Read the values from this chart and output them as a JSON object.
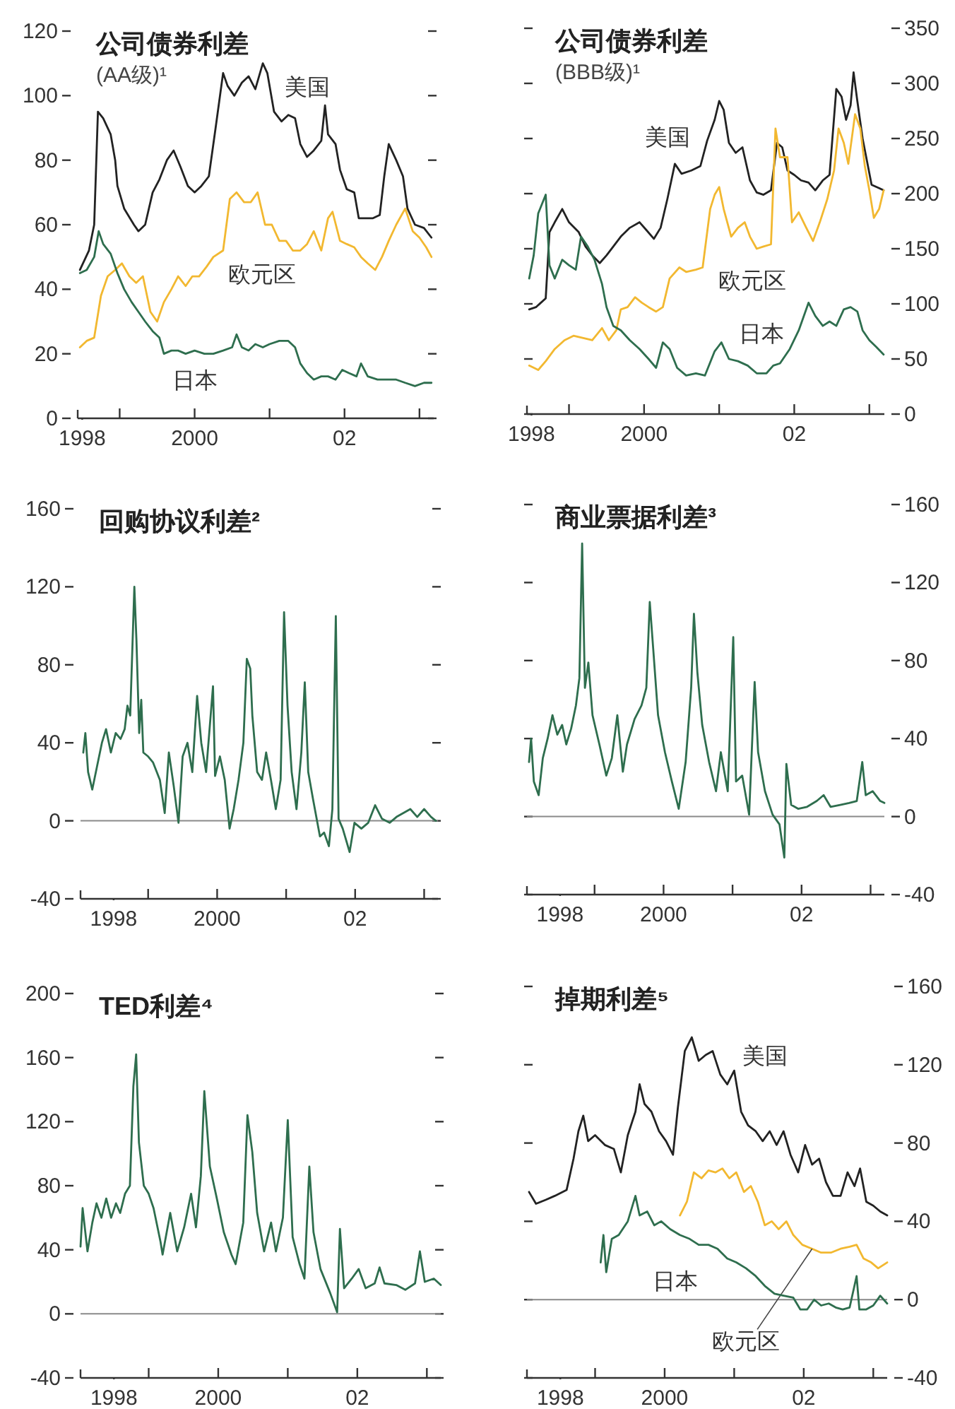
{
  "chart_data": [
    {
      "type": "line",
      "title": "公司债券利差",
      "subtitle": "(AA级)¹",
      "xlim": [
        1998.44,
        2003.19
      ],
      "ylim": [
        0,
        120
      ],
      "yticks": [
        0,
        20,
        40,
        60,
        80,
        100,
        120
      ],
      "xticks": [
        {
          "value": 1998.5,
          "label": "1998"
        },
        {
          "value": 1999,
          "label": null
        },
        {
          "value": 2000,
          "label": "2000"
        },
        {
          "value": 2001,
          "label": null
        },
        {
          "value": 2002,
          "label": "02"
        },
        {
          "value": 2003,
          "label": null
        }
      ],
      "series": [
        {
          "name": "美国",
          "color": "#222222",
          "x": [
            1998.47,
            1998.59,
            1998.66,
            1998.71,
            1998.78,
            1998.88,
            1998.94,
            1998.97,
            1999.06,
            1999.19,
            1999.25,
            1999.34,
            1999.44,
            1999.53,
            1999.63,
            1999.72,
            1999.81,
            1999.91,
            2000.0,
            2000.09,
            2000.19,
            2000.28,
            2000.38,
            2000.44,
            2000.53,
            2000.63,
            2000.72,
            2000.81,
            2000.91,
            2000.97,
            2001.06,
            2001.16,
            2001.25,
            2001.34,
            2001.41,
            2001.5,
            2001.59,
            2001.69,
            2001.74,
            2001.78,
            2001.88,
            2001.94,
            2002.03,
            2002.13,
            2002.19,
            2002.28,
            2002.38,
            2002.47,
            2002.53,
            2002.59,
            2002.69,
            2002.78,
            2002.84,
            2002.94,
            2003.06,
            2003.16
          ],
          "values": [
            46,
            52,
            60,
            95,
            93,
            88,
            80,
            72,
            65,
            60,
            58,
            60,
            70,
            74,
            80,
            83,
            78,
            72,
            70,
            72,
            75,
            90,
            107,
            103,
            100,
            104,
            106,
            102,
            110,
            107,
            95,
            92,
            94,
            93,
            85,
            81,
            83,
            86,
            97,
            88,
            85,
            77,
            71,
            70,
            62,
            62,
            62,
            63,
            75,
            85,
            80,
            75,
            65,
            60,
            59,
            56
          ]
        },
        {
          "name": "欧元区",
          "color": "#f2b830",
          "x": [
            1998.47,
            1998.56,
            1998.66,
            1998.75,
            1998.84,
            1998.94,
            1999.03,
            1999.13,
            1999.22,
            1999.31,
            1999.41,
            1999.5,
            1999.59,
            1999.69,
            1999.78,
            1999.88,
            1999.97,
            2000.06,
            2000.16,
            2000.25,
            2000.38,
            2000.47,
            2000.56,
            2000.66,
            2000.75,
            2000.84,
            2000.94,
            2001.03,
            2001.13,
            2001.22,
            2001.31,
            2001.41,
            2001.5,
            2001.59,
            2001.69,
            2001.78,
            2001.84,
            2001.94,
            2002.03,
            2002.13,
            2002.22,
            2002.31,
            2002.41,
            2002.5,
            2002.59,
            2002.69,
            2002.81,
            2002.91,
            2003.0,
            2003.09,
            2003.16
          ],
          "values": [
            22,
            24,
            25,
            38,
            44,
            46,
            48,
            44,
            42,
            44,
            33,
            30,
            36,
            40,
            44,
            41,
            44,
            44,
            47,
            50,
            52,
            68,
            70,
            67,
            67,
            70,
            60,
            60,
            55,
            55,
            52,
            52,
            54,
            58,
            52,
            62,
            64,
            55,
            54,
            53,
            50,
            48,
            46,
            50,
            55,
            60,
            65,
            58,
            56,
            53,
            50
          ]
        },
        {
          "name": "日本",
          "color": "#2e6e4e",
          "x": [
            1998.47,
            1998.56,
            1998.66,
            1998.72,
            1998.78,
            1998.88,
            1998.97,
            1999.06,
            1999.16,
            1999.25,
            1999.34,
            1999.44,
            1999.53,
            1999.59,
            1999.69,
            1999.78,
            1999.88,
            2000.0,
            2000.13,
            2000.25,
            2000.38,
            2000.5,
            2000.56,
            2000.63,
            2000.72,
            2000.81,
            2000.91,
            2001.0,
            2001.13,
            2001.25,
            2001.34,
            2001.41,
            2001.5,
            2001.59,
            2001.69,
            2001.78,
            2001.88,
            2001.97,
            2002.06,
            2002.16,
            2002.22,
            2002.31,
            2002.44,
            2002.56,
            2002.69,
            2002.81,
            2002.94,
            2003.06,
            2003.16
          ],
          "values": [
            45,
            46,
            50,
            58,
            54,
            51,
            45,
            40,
            36,
            33,
            30,
            27,
            25,
            20,
            21,
            21,
            20,
            21,
            20,
            20,
            21,
            22,
            26,
            22,
            21,
            23,
            22,
            23,
            24,
            24,
            22,
            17,
            14,
            12,
            13,
            13,
            12,
            15,
            14,
            13,
            17,
            13,
            12,
            12,
            12,
            11,
            10,
            11,
            11
          ]
        }
      ]
    },
    {
      "type": "line",
      "title": "公司债券利差",
      "subtitle": "(BBB级)¹",
      "xlim": [
        1998.44,
        2003.2
      ],
      "y2lim": [
        0,
        350
      ],
      "y2ticks": [
        0,
        50,
        100,
        150,
        200,
        250,
        300,
        350
      ],
      "xticks": [
        {
          "value": 1998.5,
          "label": "1998"
        },
        {
          "value": 1999,
          "label": null
        },
        {
          "value": 2000,
          "label": "2000"
        },
        {
          "value": 2001,
          "label": null
        },
        {
          "value": 2002,
          "label": "02"
        },
        {
          "value": 2003,
          "label": null
        }
      ],
      "series": [
        {
          "name": "美国",
          "color": "#222222",
          "axis": "y2",
          "x": [
            1998.47,
            1998.56,
            1998.69,
            1998.74,
            1998.81,
            1998.91,
            1999.0,
            1999.13,
            1999.22,
            1999.31,
            1999.41,
            1999.5,
            1999.59,
            1999.69,
            1999.81,
            1999.94,
            2000.03,
            2000.13,
            2000.22,
            2000.31,
            2000.41,
            2000.5,
            2000.63,
            2000.75,
            2000.84,
            2000.94,
            2001.0,
            2001.06,
            2001.13,
            2001.22,
            2001.31,
            2001.41,
            2001.5,
            2001.59,
            2001.69,
            2001.77,
            2001.84,
            2001.91,
            2002.0,
            2002.09,
            2002.19,
            2002.28,
            2002.38,
            2002.47,
            2002.56,
            2002.63,
            2002.69,
            2002.75,
            2002.79,
            2002.84,
            2002.91,
            2002.97,
            2003.03,
            2003.13,
            2003.19
          ],
          "values": [
            95,
            97,
            105,
            165,
            174,
            186,
            174,
            165,
            152,
            144,
            137,
            144,
            152,
            161,
            169,
            174,
            167,
            159,
            169,
            195,
            227,
            218,
            221,
            225,
            248,
            267,
            284,
            276,
            246,
            237,
            242,
            212,
            201,
            199,
            203,
            246,
            242,
            221,
            217,
            212,
            210,
            203,
            212,
            217,
            295,
            288,
            267,
            280,
            310,
            284,
            250,
            229,
            208,
            205,
            203
          ]
        },
        {
          "name": "欧元区",
          "color": "#f2b830",
          "axis": "y2",
          "x": [
            1998.47,
            1998.59,
            1998.69,
            1998.81,
            1998.94,
            1999.06,
            1999.19,
            1999.31,
            1999.44,
            1999.53,
            1999.63,
            1999.69,
            1999.78,
            1999.88,
            1999.97,
            2000.06,
            2000.16,
            2000.25,
            2000.34,
            2000.47,
            2000.56,
            2000.69,
            2000.78,
            2000.88,
            2000.94,
            2001.0,
            2001.06,
            2001.16,
            2001.25,
            2001.34,
            2001.41,
            2001.5,
            2001.59,
            2001.69,
            2001.75,
            2001.81,
            2001.91,
            2001.97,
            2002.06,
            2002.16,
            2002.25,
            2002.34,
            2002.44,
            2002.53,
            2002.59,
            2002.66,
            2002.72,
            2002.81,
            2002.88,
            2002.94,
            2003.0,
            2003.06,
            2003.13,
            2003.19
          ],
          "values": [
            44,
            40,
            48,
            59,
            67,
            71,
            69,
            67,
            78,
            67,
            76,
            95,
            97,
            106,
            101,
            97,
            93,
            97,
            123,
            133,
            129,
            131,
            133,
            186,
            199,
            206,
            186,
            161,
            169,
            174,
            161,
            150,
            152,
            154,
            259,
            233,
            233,
            174,
            183,
            169,
            157,
            174,
            195,
            221,
            259,
            246,
            227,
            272,
            259,
            225,
            203,
            178,
            186,
            203
          ]
        },
        {
          "name": "日本",
          "color": "#2e6e4e",
          "axis": "y2",
          "x": [
            1998.47,
            1998.53,
            1998.59,
            1998.69,
            1998.74,
            1998.81,
            1998.91,
            1999.0,
            1999.09,
            1999.16,
            1999.25,
            1999.34,
            1999.44,
            1999.5,
            1999.59,
            1999.69,
            1999.81,
            1999.94,
            2000.06,
            2000.16,
            2000.25,
            2000.34,
            2000.44,
            2000.56,
            2000.69,
            2000.81,
            2000.94,
            2001.03,
            2001.13,
            2001.25,
            2001.38,
            2001.5,
            2001.63,
            2001.72,
            2001.81,
            2001.94,
            2002.06,
            2002.19,
            2002.28,
            2002.38,
            2002.47,
            2002.56,
            2002.66,
            2002.75,
            2002.84,
            2002.91,
            2003.0,
            2003.09,
            2003.19
          ],
          "values": [
            123,
            144,
            182,
            199,
            135,
            123,
            140,
            135,
            131,
            161,
            152,
            140,
            118,
            97,
            80,
            76,
            67,
            59,
            50,
            42,
            65,
            59,
            42,
            35,
            37,
            35,
            57,
            65,
            50,
            48,
            44,
            37,
            37,
            44,
            46,
            59,
            76,
            101,
            89,
            80,
            84,
            80,
            95,
            97,
            93,
            76,
            67,
            61,
            54
          ]
        }
      ]
    },
    {
      "type": "line",
      "title": "回购协议利差²",
      "xlim": [
        1998.02,
        2003.2
      ],
      "ylim": [
        -40,
        160
      ],
      "yticks": [
        -40,
        0,
        40,
        80,
        120,
        160
      ],
      "xticks": [
        {
          "value": 1998.5,
          "label": "1998"
        },
        {
          "value": 1999,
          "label": null
        },
        {
          "value": 2000,
          "label": "2000"
        },
        {
          "value": 2001,
          "label": null
        },
        {
          "value": 2002,
          "label": "02"
        },
        {
          "value": 2003,
          "label": null
        }
      ],
      "ref_lines": [
        {
          "axis": "y",
          "value": 0,
          "color": "#8a8a8a"
        }
      ],
      "series": [
        {
          "color": "#2e6e4e",
          "x": [
            1998.06,
            1998.09,
            1998.13,
            1998.19,
            1998.26,
            1998.33,
            1998.39,
            1998.46,
            1998.53,
            1998.6,
            1998.66,
            1998.7,
            1998.74,
            1998.8,
            1998.83,
            1998.87,
            1998.9,
            1998.93,
            1999.0,
            1999.07,
            1999.17,
            1999.24,
            1999.3,
            1999.37,
            1999.44,
            1999.5,
            1999.57,
            1999.64,
            1999.71,
            1999.77,
            1999.84,
            1999.94,
            1999.97,
            2000.04,
            2000.11,
            2000.18,
            2000.24,
            2000.31,
            2000.38,
            2000.43,
            2000.48,
            2000.51,
            2000.58,
            2000.65,
            2000.71,
            2000.78,
            2000.85,
            2000.92,
            2000.97,
            2001.02,
            2001.08,
            2001.15,
            2001.22,
            2001.27,
            2001.32,
            2001.39,
            2001.49,
            2001.55,
            2001.62,
            2001.67,
            2001.72,
            2001.76,
            2001.82,
            2001.92,
            2001.99,
            2002.09,
            2002.19,
            2002.29,
            2002.39,
            2002.5,
            2002.6,
            2002.7,
            2002.8,
            2002.9,
            2003.0,
            2003.1,
            2003.17
          ],
          "values": [
            35,
            45,
            25,
            16,
            28,
            40,
            47,
            35,
            45,
            42,
            47,
            59,
            54,
            120,
            93,
            45,
            62,
            35,
            33,
            30,
            21,
            4,
            35,
            18,
            -1,
            33,
            40,
            25,
            64,
            40,
            25,
            69,
            23,
            33,
            21,
            -4,
            6,
            21,
            40,
            83,
            78,
            54,
            25,
            21,
            35,
            21,
            6,
            21,
            107,
            59,
            25,
            6,
            35,
            71,
            25,
            11,
            -8,
            -6,
            -13,
            6,
            105,
            1,
            -4,
            -16,
            -1,
            -4,
            -1,
            8,
            1,
            -1,
            2,
            4,
            6,
            2,
            6,
            2,
            0
          ]
        }
      ]
    },
    {
      "type": "line",
      "title": "商业票据利差³",
      "xlim": [
        1998.02,
        2003.2
      ],
      "y2lim": [
        -40,
        160
      ],
      "y2ticks": [
        -40,
        0,
        40,
        80,
        120,
        160
      ],
      "xticks": [
        {
          "value": 1998.5,
          "label": "1998"
        },
        {
          "value": 1999,
          "label": null
        },
        {
          "value": 2000,
          "label": "2000"
        },
        {
          "value": 2001,
          "label": null
        },
        {
          "value": 2002,
          "label": "02"
        },
        {
          "value": 2003,
          "label": null
        }
      ],
      "ref_lines": [
        {
          "axis": "y2",
          "value": 0,
          "color": "#8a8a8a"
        }
      ],
      "series": [
        {
          "color": "#2e6e4e",
          "axis": "y2",
          "x": [
            1998.05,
            1998.08,
            1998.12,
            1998.19,
            1998.25,
            1998.32,
            1998.39,
            1998.46,
            1998.53,
            1998.59,
            1998.66,
            1998.73,
            1998.78,
            1998.82,
            1998.86,
            1998.91,
            1998.97,
            1999.07,
            1999.17,
            1999.25,
            1999.33,
            1999.41,
            1999.47,
            1999.58,
            1999.68,
            1999.75,
            1999.8,
            1999.85,
            1999.92,
            2000.02,
            2000.12,
            2000.22,
            2000.32,
            2000.4,
            2000.44,
            2000.49,
            2000.56,
            2000.66,
            2000.76,
            2000.83,
            2000.93,
            2001.01,
            2001.05,
            2001.14,
            2001.24,
            2001.32,
            2001.37,
            2001.47,
            2001.58,
            2001.68,
            2001.75,
            2001.78,
            2001.85,
            2001.95,
            2002.08,
            2002.22,
            2002.32,
            2002.42,
            2002.56,
            2002.69,
            2002.8,
            2002.88,
            2002.93,
            2003.03,
            2003.14,
            2003.2
          ],
          "values": [
            28,
            40,
            18,
            11,
            30,
            40,
            52,
            42,
            47,
            37,
            45,
            57,
            71,
            140,
            66,
            79,
            52,
            37,
            21,
            30,
            52,
            23,
            37,
            50,
            57,
            66,
            110,
            86,
            52,
            33,
            18,
            4,
            28,
            66,
            104,
            74,
            47,
            28,
            13,
            33,
            13,
            92,
            18,
            21,
            1,
            69,
            33,
            13,
            1,
            -4,
            -21,
            27,
            6,
            4,
            5,
            8,
            11,
            5,
            6,
            7,
            8,
            28,
            11,
            13,
            8,
            7
          ]
        }
      ]
    },
    {
      "type": "line",
      "title": "TED利差⁴",
      "xlim": [
        1998.02,
        2003.2
      ],
      "ylim": [
        -40,
        200
      ],
      "yticks": [
        -40,
        0,
        40,
        80,
        120,
        160,
        200
      ],
      "xticks": [
        {
          "value": 1998.5,
          "label": "1998"
        },
        {
          "value": 1999,
          "label": null
        },
        {
          "value": 2000,
          "label": "2000"
        },
        {
          "value": 2001,
          "label": null
        },
        {
          "value": 2002,
          "label": "02"
        },
        {
          "value": 2003,
          "label": null
        }
      ],
      "ref_lines": [
        {
          "axis": "y",
          "value": 0,
          "color": "#8a8a8a"
        }
      ],
      "series": [
        {
          "color": "#2e6e4e",
          "x": [
            1998.02,
            1998.05,
            1998.12,
            1998.19,
            1998.25,
            1998.32,
            1998.39,
            1998.46,
            1998.53,
            1998.59,
            1998.66,
            1998.73,
            1998.78,
            1998.82,
            1998.86,
            1998.93,
            1999.0,
            1999.07,
            1999.17,
            1999.2,
            1999.31,
            1999.41,
            1999.51,
            1999.61,
            1999.68,
            1999.75,
            1999.8,
            1999.88,
            1999.98,
            2000.08,
            2000.19,
            2000.25,
            2000.36,
            2000.42,
            2000.49,
            2000.56,
            2000.66,
            2000.76,
            2000.83,
            2000.93,
            2001.0,
            2001.07,
            2001.17,
            2001.24,
            2001.31,
            2001.37,
            2001.47,
            2001.61,
            2001.71,
            2001.75,
            2001.81,
            2001.92,
            2002.02,
            2002.12,
            2002.25,
            2002.32,
            2002.39,
            2002.56,
            2002.69,
            2002.83,
            2002.9,
            2002.97,
            2003.1,
            2003.2
          ],
          "values": [
            42,
            66,
            39,
            57,
            69,
            60,
            72,
            60,
            69,
            63,
            75,
            80,
            142,
            162,
            107,
            80,
            75,
            66,
            45,
            37,
            63,
            39,
            54,
            75,
            54,
            86,
            139,
            92,
            72,
            51,
            37,
            31,
            57,
            124,
            101,
            63,
            39,
            57,
            39,
            60,
            121,
            48,
            31,
            22,
            92,
            51,
            28,
            13,
            1,
            53,
            16,
            22,
            28,
            16,
            19,
            29,
            19,
            18,
            15,
            19,
            39,
            20,
            22,
            18
          ]
        }
      ]
    },
    {
      "type": "line",
      "title": "掉期利差⁵",
      "xlim": [
        1998.02,
        2003.2
      ],
      "y2lim": [
        -40,
        160
      ],
      "y2ticks": [
        -40,
        0,
        40,
        80,
        120,
        160
      ],
      "xticks": [
        {
          "value": 1998.5,
          "label": "1998"
        },
        {
          "value": 1999,
          "label": null
        },
        {
          "value": 2000,
          "label": "2000"
        },
        {
          "value": 2001,
          "label": null
        },
        {
          "value": 2002,
          "label": "02"
        },
        {
          "value": 2003,
          "label": null
        }
      ],
      "ref_lines": [
        {
          "axis": "y2",
          "value": 0,
          "color": "#8a8a8a"
        }
      ],
      "series": [
        {
          "name": "美国",
          "color": "#222222",
          "axis": "y2",
          "x": [
            1998.05,
            1998.15,
            1998.29,
            1998.42,
            1998.59,
            1998.69,
            1998.76,
            1998.83,
            1998.9,
            1999.0,
            1999.14,
            1999.27,
            1999.37,
            1999.47,
            1999.58,
            1999.64,
            1999.71,
            1999.81,
            1999.92,
            2000.02,
            2000.12,
            2000.19,
            2000.29,
            2000.39,
            2000.49,
            2000.59,
            2000.69,
            2000.8,
            2000.9,
            2001.0,
            2001.1,
            2001.2,
            2001.31,
            2001.41,
            2001.51,
            2001.61,
            2001.71,
            2001.81,
            2001.92,
            2002.02,
            2002.12,
            2002.22,
            2002.32,
            2002.42,
            2002.53,
            2002.63,
            2002.73,
            2002.81,
            2002.9,
            2003.0,
            2003.1,
            2003.2
          ],
          "values": [
            55,
            49,
            51,
            53,
            56,
            72,
            86,
            94,
            81,
            84,
            79,
            77,
            65,
            84,
            96,
            110,
            100,
            96,
            86,
            81,
            74,
            98,
            127,
            134,
            122,
            125,
            127,
            115,
            110,
            117,
            96,
            89,
            86,
            81,
            86,
            79,
            86,
            74,
            65,
            79,
            69,
            72,
            60,
            53,
            53,
            65,
            58,
            67,
            50,
            48,
            45,
            43
          ]
        },
        {
          "name": "欧元区",
          "color": "#f2b830",
          "axis": "y2",
          "x": [
            2000.22,
            2000.32,
            2000.42,
            2000.53,
            2000.63,
            2000.73,
            2000.83,
            2000.93,
            2001.03,
            2001.14,
            2001.24,
            2001.34,
            2001.44,
            2001.54,
            2001.64,
            2001.75,
            2001.85,
            2001.98,
            2002.12,
            2002.25,
            2002.39,
            2002.53,
            2002.66,
            2002.76,
            2002.86,
            2002.97,
            2003.07,
            2003.2
          ],
          "values": [
            43,
            50,
            65,
            62,
            66,
            65,
            67,
            62,
            65,
            55,
            58,
            50,
            38,
            40,
            36,
            40,
            33,
            28,
            26,
            24,
            24,
            26,
            27,
            28,
            21,
            19,
            16,
            19
          ]
        },
        {
          "name": "日本",
          "color": "#2e6e4e",
          "axis": "y2",
          "x": [
            1999.08,
            1999.12,
            1999.16,
            1999.24,
            1999.34,
            1999.47,
            1999.58,
            1999.64,
            1999.75,
            1999.85,
            1999.95,
            2000.08,
            2000.22,
            2000.36,
            2000.49,
            2000.63,
            2000.76,
            2000.9,
            2001.03,
            2001.17,
            2001.31,
            2001.44,
            2001.58,
            2001.71,
            2001.85,
            2001.95,
            2002.05,
            2002.15,
            2002.25,
            2002.36,
            2002.46,
            2002.56,
            2002.66,
            2002.76,
            2002.8,
            2002.9,
            2003.0,
            2003.1,
            2003.2
          ],
          "values": [
            19,
            33,
            14,
            31,
            33,
            40,
            53,
            43,
            45,
            38,
            40,
            36,
            33,
            31,
            28,
            28,
            26,
            21,
            19,
            16,
            12,
            7,
            3,
            2,
            1,
            -5,
            -5,
            0,
            -3,
            -2,
            -4,
            -5,
            -4,
            12,
            -5,
            -5,
            -3,
            2,
            -2
          ]
        }
      ]
    }
  ]
}
